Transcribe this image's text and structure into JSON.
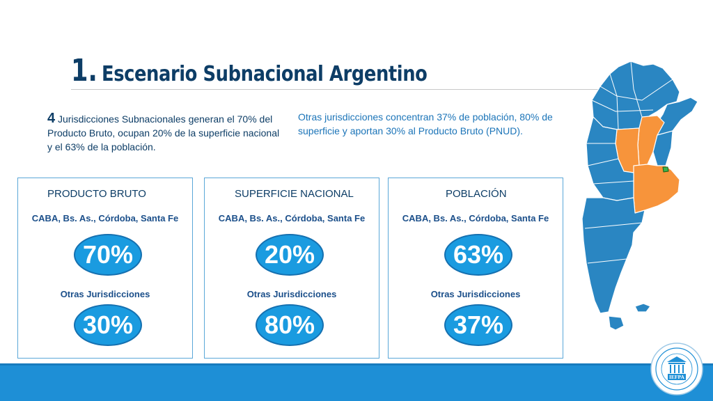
{
  "title": {
    "number": "1.",
    "text": "Escenario Subnacional Argentino"
  },
  "intro": {
    "lead": "4",
    "text": "Jurisdicciones Subnacionales generan el 70% del Producto Bruto, ocupan 20% de la superficie nacional y el 63% de la población."
  },
  "other_text": "Otras jurisdicciones concentran 37% de población, 80% de superficie y aportan 30% al Producto Bruto (PNUD).",
  "cards": [
    {
      "title": "PRODUCTO BRUTO",
      "group1": "CABA, Bs. As., Córdoba, Santa Fe",
      "value1": "70%",
      "group2": "Otras Jurisdicciones",
      "value2": "30%"
    },
    {
      "title": "SUPERFICIE NACIONAL",
      "group1": "CABA, Bs. As., Córdoba, Santa Fe",
      "value1": "20%",
      "group2": "Otras Jurisdicciones",
      "value2": "80%"
    },
    {
      "title": "POBLACIÓN",
      "group1": "CABA, Bs. As., Córdoba, Santa Fe",
      "value1": "63%",
      "group2": "Otras Jurisdicciones",
      "value2": "37%"
    }
  ],
  "logo": {
    "text": "IEFPA"
  },
  "colors": {
    "title": "#0d3d66",
    "accent": "#1a9be0",
    "map_blue": "#2a86c2",
    "map_orange": "#f7943b",
    "map_green": "#3cb34a",
    "bar": "#1e8fd6"
  }
}
